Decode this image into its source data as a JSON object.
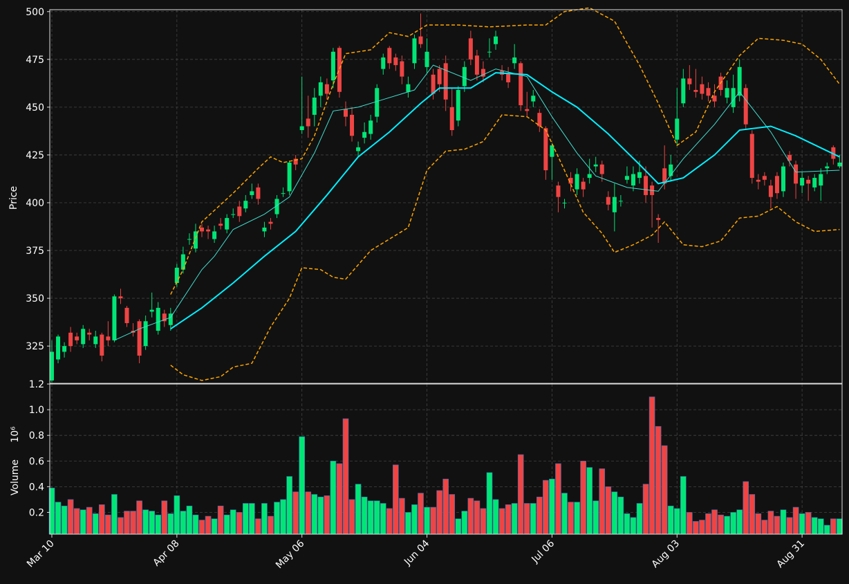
{
  "chart_data": {
    "type": "candlestick",
    "ylabel": "Price",
    "volume_label": "Volume",
    "volume_multiplier": "10⁶",
    "xlim": [
      -0.33,
      126.4
    ],
    "xticks": [
      {
        "value": 0,
        "label": "Mar 10"
      },
      {
        "value": 20,
        "label": "Apr 08"
      },
      {
        "value": 40,
        "label": "May 06"
      },
      {
        "value": 60,
        "label": "Jun 04"
      },
      {
        "value": 80,
        "label": "Jul 06"
      },
      {
        "value": 100,
        "label": "Aug 03"
      },
      {
        "value": 120,
        "label": "Aug 31"
      }
    ],
    "ylim": [
      305.5,
      501
    ],
    "yticks": [
      325,
      350,
      375,
      400,
      425,
      450,
      475,
      500
    ],
    "vol_ylim": [
      0.03,
      1.2
    ],
    "vol_yticks": [
      0.2,
      0.4,
      0.6,
      0.8,
      {
        "value": 1,
        "label": "1.0"
      },
      1.2
    ],
    "grid": true,
    "up_color": "#00e676",
    "down_color": "#ef4444",
    "open": [
      307,
      318,
      322,
      332,
      330,
      326,
      332,
      326,
      331,
      330,
      328,
      351,
      345,
      333,
      338,
      325,
      343,
      333,
      342,
      336,
      358,
      365,
      381,
      376,
      387,
      386,
      381,
      389,
      386,
      394,
      398,
      397,
      404,
      408,
      385,
      390,
      394,
      405,
      406,
      423,
      438,
      444,
      446,
      456,
      462,
      464,
      481,
      449,
      446,
      427,
      434,
      436,
      445,
      470,
      481,
      476,
      474,
      458,
      473,
      487,
      471,
      467,
      470,
      473,
      450,
      443,
      461,
      486,
      477,
      470,
      479,
      483,
      469,
      468,
      473,
      473,
      449,
      453,
      447,
      439,
      424,
      409,
      400,
      413,
      407,
      411,
      413,
      419,
      420,
      403,
      395,
      401,
      412,
      409,
      413,
      414,
      409,
      392,
      418,
      414,
      433,
      452,
      465,
      459,
      462,
      460,
      456,
      466,
      455,
      450,
      456,
      460,
      436,
      412,
      414,
      409,
      414,
      406,
      425,
      420,
      409,
      412,
      408,
      409,
      418,
      429,
      419
    ],
    "high": [
      328,
      331,
      327,
      335,
      332,
      336,
      334,
      333,
      332,
      338,
      352,
      355,
      346,
      337,
      339,
      341,
      353,
      348,
      344,
      345,
      368,
      377,
      384,
      389,
      389,
      388,
      388,
      392,
      394,
      397,
      401,
      404,
      410,
      410,
      390,
      392,
      404,
      408,
      422,
      425,
      466,
      456,
      460,
      466,
      465,
      481,
      482,
      453,
      450,
      432,
      442,
      446,
      462,
      478,
      482,
      478,
      477,
      466,
      488,
      499,
      486,
      470,
      472,
      477,
      460,
      461,
      474,
      490,
      480,
      474,
      486,
      490,
      472,
      471,
      483,
      474,
      458,
      459,
      449,
      440,
      431,
      411,
      402,
      416,
      418,
      413,
      423,
      424,
      422,
      406,
      410,
      404,
      419,
      419,
      422,
      419,
      411,
      394,
      430,
      425,
      460,
      470,
      472,
      470,
      466,
      463,
      462,
      468,
      464,
      467,
      475,
      462,
      438,
      415,
      416,
      412,
      416,
      421,
      427,
      422,
      416,
      414,
      415,
      418,
      421,
      430,
      425
    ],
    "low": [
      306,
      316,
      319,
      322,
      326,
      324,
      328,
      324,
      317,
      325,
      327,
      347,
      335,
      330,
      316,
      323,
      340,
      331,
      335,
      333,
      356,
      363,
      378,
      374,
      382,
      381,
      379,
      386,
      384,
      392,
      390,
      395,
      402,
      399,
      382,
      386,
      392,
      403,
      404,
      417,
      436,
      434,
      440,
      450,
      454,
      460,
      455,
      440,
      432,
      424,
      431,
      433,
      442,
      467,
      470,
      469,
      462,
      455,
      470,
      481,
      468,
      454,
      458,
      448,
      435,
      440,
      458,
      472,
      464,
      463,
      476,
      480,
      464,
      460,
      470,
      448,
      445,
      450,
      437,
      412,
      412,
      395,
      397,
      406,
      404,
      403,
      410,
      416,
      411,
      396,
      385,
      398,
      410,
      406,
      410,
      400,
      387,
      379,
      407,
      411,
      430,
      450,
      459,
      455,
      454,
      453,
      450,
      456,
      452,
      447,
      453,
      438,
      410,
      407,
      409,
      397,
      402,
      403,
      419,
      402,
      405,
      401,
      406,
      401,
      415,
      420,
      418
    ],
    "close": [
      322,
      330,
      325,
      325,
      328,
      334,
      331,
      330,
      320,
      328,
      351,
      350,
      337,
      332,
      320,
      338,
      344,
      345,
      338,
      342,
      366,
      373,
      381,
      385,
      385,
      385,
      385,
      388,
      392,
      394,
      393,
      401,
      406,
      402,
      387,
      389,
      402,
      405,
      421,
      420,
      440,
      440,
      455,
      463,
      457,
      479,
      458,
      445,
      435,
      429,
      437,
      443,
      460,
      476,
      473,
      472,
      466,
      462,
      486,
      483,
      479,
      457,
      462,
      454,
      438,
      459,
      471,
      475,
      467,
      466,
      479,
      487,
      467,
      463,
      476,
      451,
      448,
      456,
      440,
      417,
      430,
      403,
      400,
      410,
      415,
      407,
      415,
      420,
      415,
      399,
      403,
      401,
      414,
      415,
      416,
      404,
      404,
      391,
      410,
      420,
      444,
      465,
      462,
      458,
      457,
      456,
      453,
      459,
      460,
      460,
      471,
      441,
      413,
      411,
      412,
      403,
      405,
      419,
      422,
      410,
      413,
      410,
      413,
      415,
      419,
      423,
      421
    ],
    "volume": [
      0.39,
      0.28,
      0.25,
      0.3,
      0.23,
      0.22,
      0.24,
      0.19,
      0.26,
      0.18,
      0.34,
      0.16,
      0.21,
      0.21,
      0.29,
      0.22,
      0.21,
      0.18,
      0.29,
      0.19,
      0.33,
      0.21,
      0.25,
      0.18,
      0.14,
      0.17,
      0.15,
      0.25,
      0.18,
      0.22,
      0.2,
      0.27,
      0.27,
      0.15,
      0.27,
      0.17,
      0.28,
      0.3,
      0.48,
      0.36,
      0.79,
      0.36,
      0.34,
      0.32,
      0.33,
      0.6,
      0.58,
      0.93,
      0.3,
      0.42,
      0.32,
      0.29,
      0.29,
      0.27,
      0.23,
      0.57,
      0.31,
      0.2,
      0.26,
      0.35,
      0.24,
      0.24,
      0.37,
      0.46,
      0.34,
      0.15,
      0.21,
      0.31,
      0.29,
      0.23,
      0.51,
      0.3,
      0.23,
      0.26,
      0.27,
      0.65,
      0.27,
      0.27,
      0.32,
      0.45,
      0.46,
      0.58,
      0.35,
      0.28,
      0.28,
      0.6,
      0.55,
      0.29,
      0.54,
      0.4,
      0.36,
      0.32,
      0.19,
      0.16,
      0.27,
      0.42,
      1.1,
      0.87,
      0.72,
      0.25,
      0.23,
      0.48,
      0.2,
      0.13,
      0.14,
      0.19,
      0.22,
      0.18,
      0.17,
      0.2,
      0.22,
      0.44,
      0.34,
      0.19,
      0.14,
      0.21,
      0.17,
      0.22,
      0.16,
      0.24,
      0.19,
      0.2,
      0.16,
      0.15,
      0.1,
      0.15,
      0.15
    ],
    "lines": [
      {
        "color": "#40e0d0",
        "width": 1,
        "dash": false,
        "x": [
          10,
          14,
          19,
          24,
          26,
          29,
          34,
          38,
          42,
          45,
          49,
          53,
          58,
          61,
          67,
          71,
          76,
          80,
          84,
          87,
          92,
          97,
          101,
          106,
          110,
          115,
          119,
          126
        ],
        "values": [
          328,
          334,
          340,
          365,
          372,
          386,
          394,
          403,
          426,
          448,
          450,
          454,
          459,
          472,
          464,
          470,
          466,
          445,
          426,
          414,
          408,
          406,
          423,
          441,
          458,
          437,
          416,
          417
        ]
      },
      {
        "color": "#00f0ff",
        "width": 2,
        "dash": false,
        "x": [
          19,
          24,
          29,
          34,
          39,
          44,
          49,
          54,
          59,
          62,
          67,
          71,
          76,
          80,
          84,
          89,
          94,
          97,
          101,
          106,
          110,
          115,
          119,
          126
        ],
        "values": [
          334,
          345,
          358,
          372,
          385,
          404,
          424,
          437,
          452,
          460,
          460,
          468,
          467,
          458,
          450,
          436,
          420,
          410,
          413,
          425,
          438,
          440,
          435,
          424
        ]
      },
      {
        "color": "#ffa500",
        "width": 1.5,
        "dash": true,
        "x": [
          19,
          21,
          24,
          29,
          33,
          35,
          37,
          40,
          42,
          45,
          47,
          51,
          54,
          57,
          60,
          65,
          70,
          76,
          79,
          82,
          86,
          90,
          94,
          97,
          100,
          103,
          106,
          110,
          113,
          117,
          120,
          123,
          126
        ],
        "values": [
          352,
          365,
          390,
          405,
          418,
          424,
          421,
          423,
          435,
          462,
          478,
          480,
          489,
          487,
          493,
          493,
          492,
          493,
          493,
          500,
          502,
          495,
          472,
          452,
          430,
          437,
          458,
          477,
          486,
          485,
          483,
          475,
          462
        ]
      },
      {
        "color": "#ffa500",
        "width": 1.5,
        "dash": true,
        "x": [
          19,
          21,
          24,
          27,
          29,
          32,
          35,
          38,
          40,
          43,
          45,
          47,
          51,
          54,
          57,
          60,
          63,
          66,
          69,
          72,
          76,
          79,
          82,
          85,
          88,
          90,
          93,
          96,
          98,
          101,
          104,
          107,
          110,
          113,
          116,
          119,
          122,
          126
        ],
        "values": [
          315,
          310,
          307,
          309,
          314,
          316,
          335,
          350,
          366,
          365,
          361,
          360,
          375,
          381,
          387,
          417,
          427,
          428,
          432,
          446,
          445,
          438,
          417,
          395,
          384,
          374,
          378,
          383,
          390,
          378,
          377,
          380,
          392,
          393,
          398,
          390,
          385,
          386
        ]
      }
    ]
  }
}
